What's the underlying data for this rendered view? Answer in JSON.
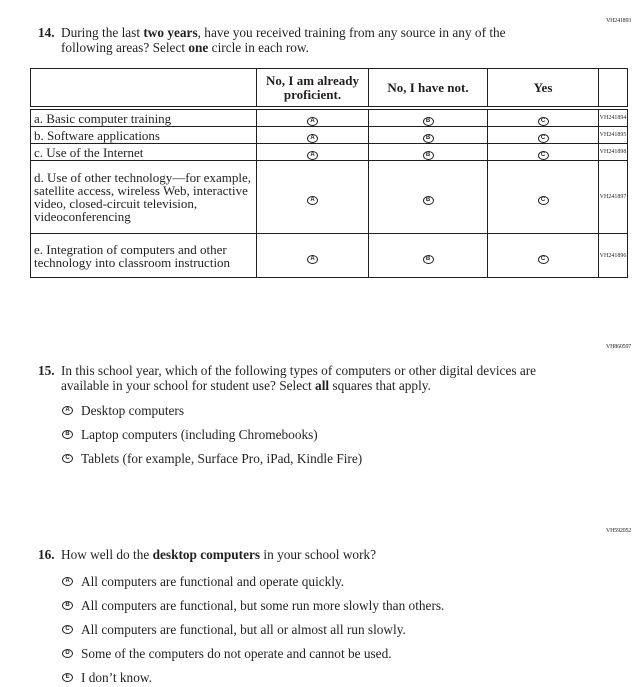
{
  "q14": {
    "id": "VH241893",
    "number": "14.",
    "text_before": "During the last ",
    "bold1": "two years",
    "text_mid": ", have you received training from any source in any of the following areas? Select ",
    "bold2": "one",
    "text_after": " circle in each row.",
    "columns": [
      "No, I am already proficient.",
      "No, I have not.",
      "Yes"
    ],
    "column_letters": [
      "A",
      "B",
      "C"
    ],
    "rows": [
      {
        "label": "a. Basic computer training",
        "id": "VH241894"
      },
      {
        "label": "b. Software applications",
        "id": "VH241895"
      },
      {
        "label": "c. Use of the Internet",
        "id": "VH241898"
      },
      {
        "label": "d. Use of other technology—for example, satellite access, wireless Web, interactive video, closed-circuit television, videoconferencing",
        "id": "VH241897"
      },
      {
        "label": "e. Integration of computers and other technology into classroom instruction",
        "id": "VH241896"
      }
    ]
  },
  "q15": {
    "id": "VH860597",
    "number": "15.",
    "text_before": "In this school year, which of the following types of computers or other digital devices are available in your school for student use? Select ",
    "bold": "all",
    "text_after": " squares that apply.",
    "options": [
      {
        "letter": "A",
        "label": "Desktop computers"
      },
      {
        "letter": "B",
        "label": "Laptop computers (including Chromebooks)"
      },
      {
        "letter": "C",
        "label": "Tablets (for example, Surface Pro, iPad, Kindle Fire)"
      }
    ]
  },
  "q16": {
    "id": "VH592052",
    "number": "16.",
    "text_before": "How well do the ",
    "bold": "desktop computers",
    "text_after": " in your school work?",
    "options": [
      {
        "letter": "A",
        "label": "All computers are functional and operate quickly."
      },
      {
        "letter": "B",
        "label": "All computers are functional, but some run more slowly than others."
      },
      {
        "letter": "C",
        "label": "All computers are functional, but all or almost all run slowly."
      },
      {
        "letter": "D",
        "label": "Some of the computers do not operate and cannot be used."
      },
      {
        "letter": "E",
        "label": "I don’t know."
      }
    ]
  }
}
